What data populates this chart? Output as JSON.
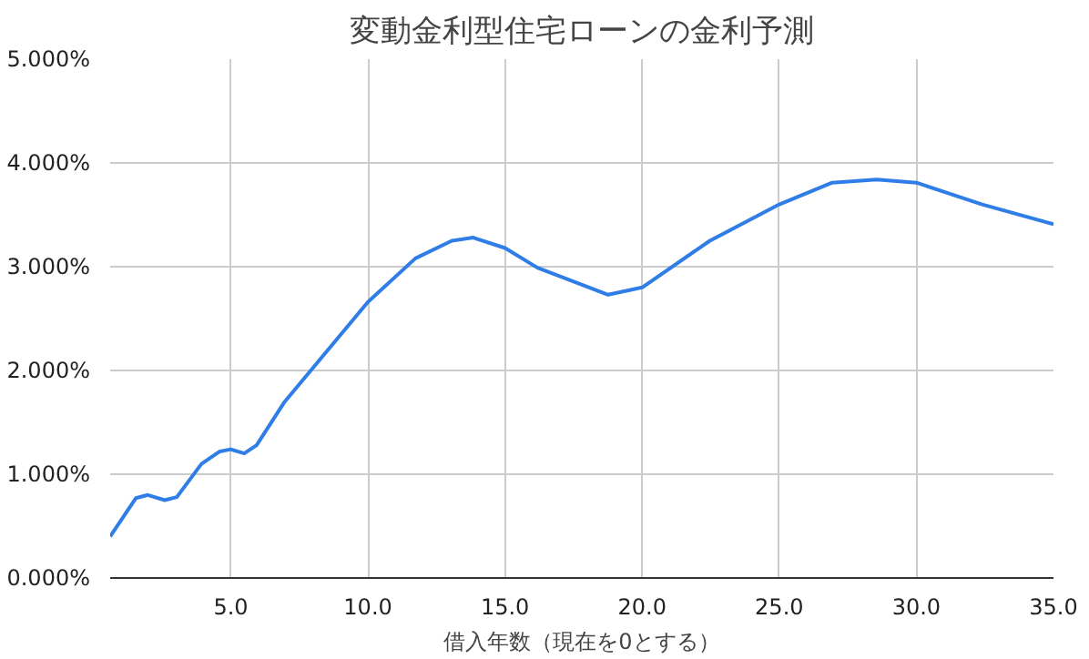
{
  "chart_data": {
    "type": "line",
    "title": "変動金利型住宅ローンの金利予測",
    "xlabel": "借入年数（現在を0とする）",
    "x": [
      0.6,
      1.54,
      1.97,
      2.59,
      3.03,
      3.93,
      4.6,
      5.0,
      5.49,
      5.94,
      6.94,
      10.0,
      11.73,
      13.06,
      13.84,
      15.0,
      16.18,
      17.07,
      18.76,
      20.0,
      22.47,
      25.0,
      26.93,
      28.55,
      30.0,
      32.4,
      35.0
    ],
    "series": [
      {
        "color": "#2f7ee8",
        "values": [
          0.4,
          0.77,
          0.8,
          0.75,
          0.78,
          1.1,
          1.22,
          1.24,
          1.2,
          1.28,
          1.69,
          2.66,
          3.08,
          3.25,
          3.28,
          3.18,
          2.99,
          2.9,
          2.73,
          2.8,
          3.25,
          3.6,
          3.81,
          3.84,
          3.81,
          3.6,
          3.41
        ]
      }
    ],
    "xlim": [
      0.6,
      35.0
    ],
    "ylim": [
      0,
      5
    ],
    "xticks": [
      {
        "value": 5,
        "label": "5.0"
      },
      {
        "value": 10,
        "label": "10.0"
      },
      {
        "value": 15,
        "label": "15.0"
      },
      {
        "value": 20,
        "label": "20.0"
      },
      {
        "value": 25,
        "label": "25.0"
      },
      {
        "value": 30,
        "label": "30.0"
      },
      {
        "value": 35,
        "label": "35.0"
      }
    ],
    "yticks": [
      {
        "value": 0,
        "label": "0.000%"
      },
      {
        "value": 1,
        "label": "1.000%"
      },
      {
        "value": 2,
        "label": "2.000%"
      },
      {
        "value": 3,
        "label": "3.000%"
      },
      {
        "value": 4,
        "label": "4.000%"
      },
      {
        "value": 5,
        "label": "5.000%"
      }
    ],
    "grid": true,
    "marker": "none",
    "line_style": "solid"
  }
}
